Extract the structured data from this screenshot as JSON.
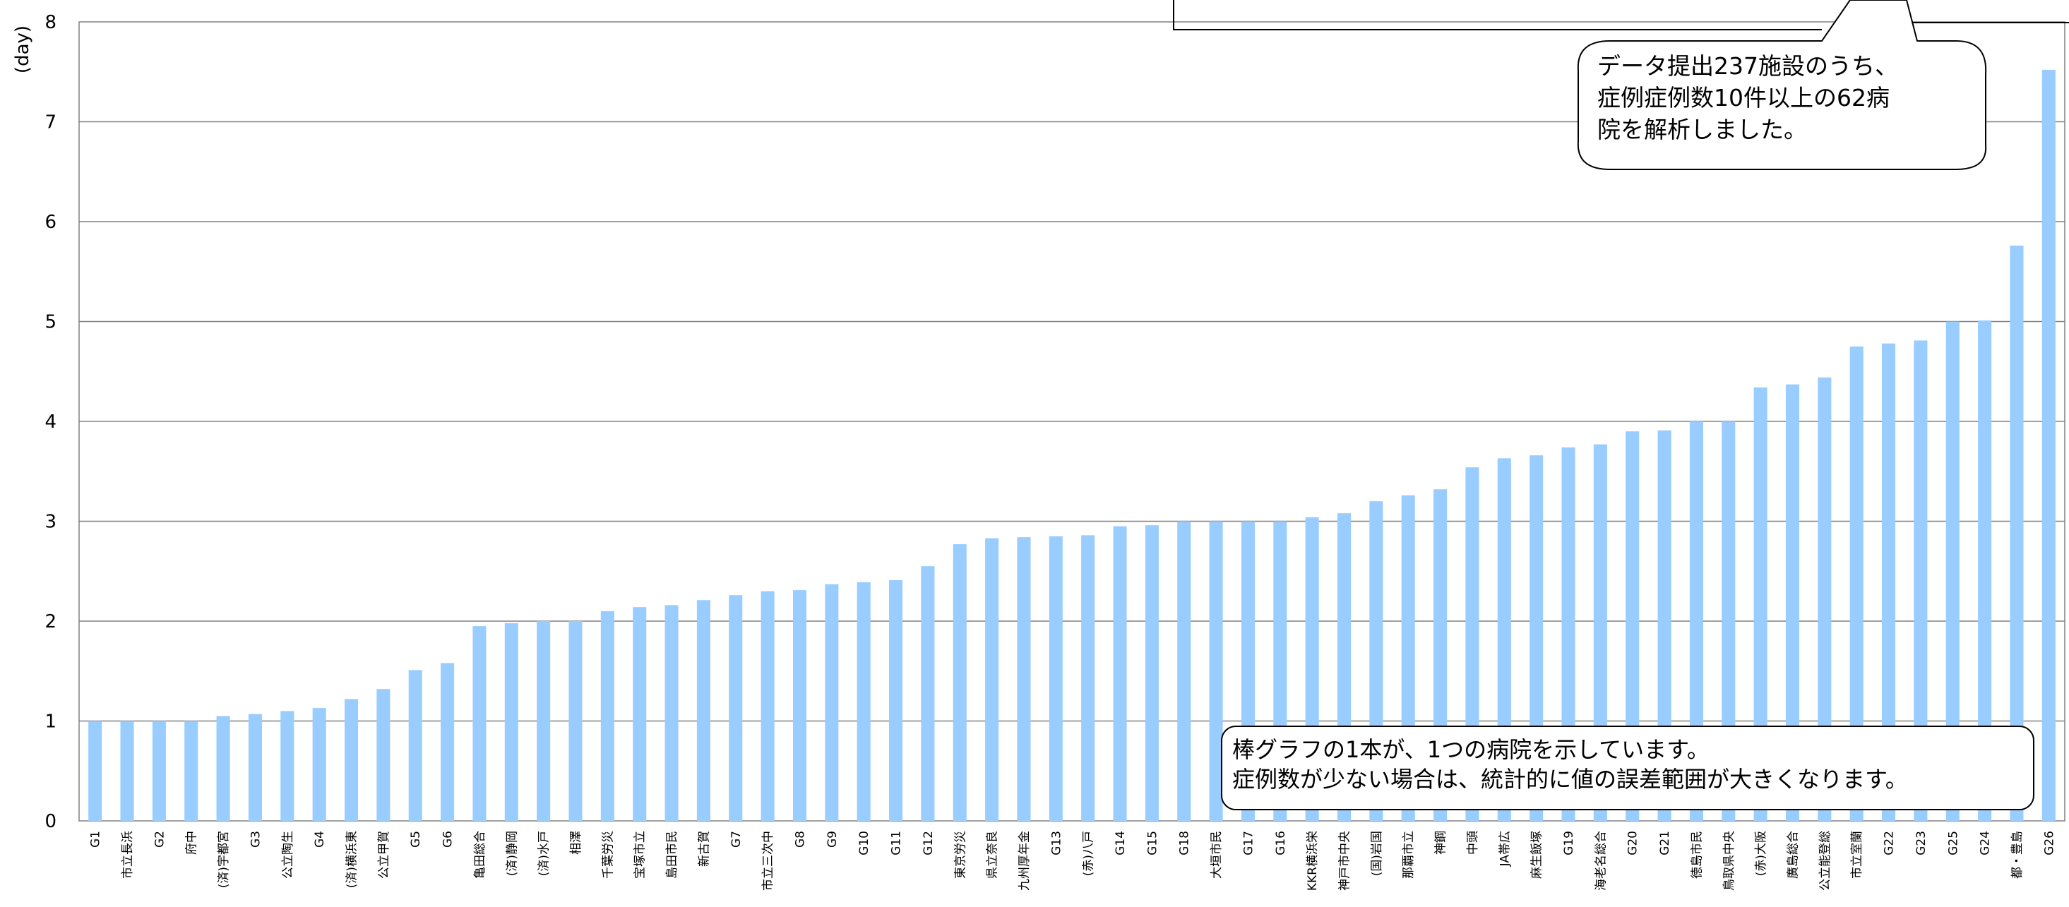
{
  "chart_data": {
    "type": "bar",
    "ylabel": "(day)",
    "ylim": [
      0,
      8
    ],
    "yticks": [
      "0",
      "1",
      "2",
      "3",
      "4",
      "5",
      "6",
      "7",
      "8"
    ],
    "grid": true,
    "bar_color": "#99ccff",
    "categories": [
      "G1",
      "市立長浜",
      "G2",
      "府中",
      "(済)宇都宮",
      "G3",
      "公立陶生",
      "G4",
      "(済)横浜東",
      "公立甲賀",
      "G5",
      "G6",
      "亀田総合",
      "(済)静岡",
      "(済)水戸",
      "相澤",
      "千葉労災",
      "宝塚市立",
      "島田市民",
      "新古賀",
      "G7",
      "市立三次中",
      "G8",
      "G9",
      "G10",
      "G11",
      "G12",
      "東京労災",
      "県立奈良",
      "九州厚年金",
      "G13",
      "(赤)八戸",
      "G14",
      "G15",
      "G18",
      "大垣市民",
      "G17",
      "G16",
      "KKR横浜栄",
      "神戸市中央",
      "(国)岩国",
      "那覇市立",
      "神鋼",
      "中頭",
      "JA帯広",
      "麻生飯塚",
      "G19",
      "海老名総合",
      "G20",
      "G21",
      "徳島市民",
      "鳥取県中央",
      "(赤)大阪",
      "廣島総合",
      "公立能登総",
      "市立室蘭",
      "G22",
      "G23",
      "G25",
      "G24",
      "都・豊島",
      "G26"
    ],
    "values": [
      1.0,
      1.0,
      1.0,
      1.0,
      1.05,
      1.07,
      1.1,
      1.13,
      1.22,
      1.32,
      1.51,
      1.58,
      1.95,
      1.98,
      2.0,
      2.0,
      2.1,
      2.14,
      2.16,
      2.21,
      2.26,
      2.3,
      2.31,
      2.37,
      2.39,
      2.41,
      2.55,
      2.77,
      2.83,
      2.84,
      2.85,
      2.86,
      2.95,
      2.96,
      3.0,
      3.0,
      3.0,
      3.0,
      3.04,
      3.08,
      3.2,
      3.26,
      3.32,
      3.54,
      3.63,
      3.66,
      3.74,
      3.77,
      3.9,
      3.91,
      4.0,
      4.0,
      4.34,
      4.37,
      4.44,
      4.75,
      4.78,
      4.81,
      5.0,
      5.01,
      5.76,
      7.52
    ],
    "annotations": {
      "top_note": [
        "データ提出237施設のうち、",
        "症例症例数10件以上の62病",
        "院を解析しました。"
      ],
      "bottom_note": [
        "棒グラフの1本が、1つの病院を示しています。",
        "症例数が少ない場合は、統計的に値の誤差範囲が大きくなります。"
      ]
    }
  }
}
